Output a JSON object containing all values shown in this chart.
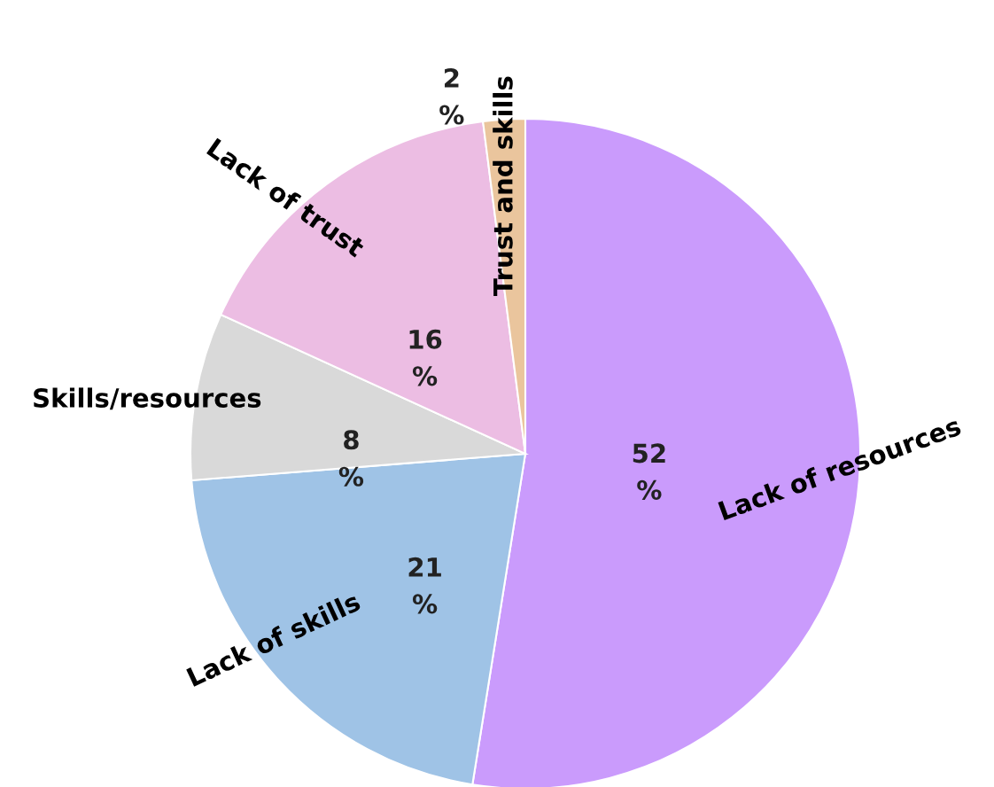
{
  "chart_data": {
    "type": "pie",
    "categories": [
      "Lack of resources",
      "Lack of skills",
      "Skills/resources",
      "Lack of trust",
      "Trust and skills"
    ],
    "values": [
      52,
      21,
      8,
      16,
      2
    ],
    "colors": [
      "#ca9bfc",
      "#9fc3e6",
      "#d9d9d9",
      "#ecbde3",
      "#eac59d"
    ],
    "value_labels": [
      "52 %",
      "21 %",
      "8 %",
      "16 %",
      "2 %"
    ]
  }
}
